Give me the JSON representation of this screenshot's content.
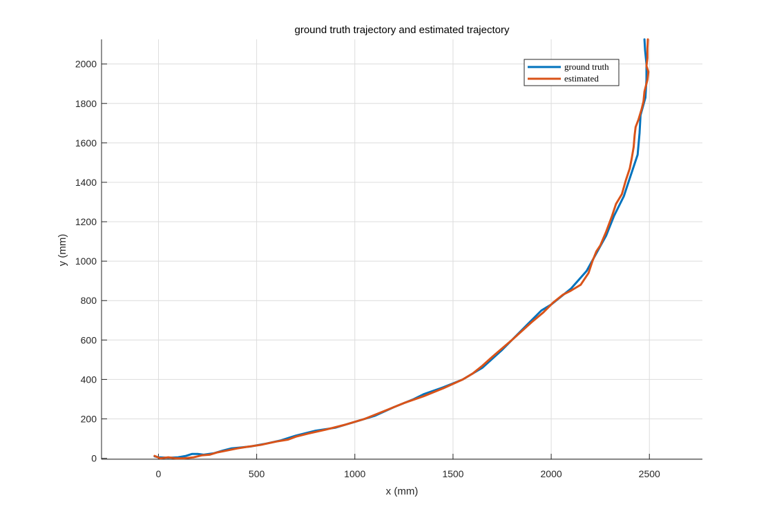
{
  "chart_data": {
    "type": "line",
    "title": "ground truth trajectory and estimated trajectory",
    "xlabel": "x (mm)",
    "ylabel": "y (mm)",
    "xlim": [
      -290,
      2770
    ],
    "ylim": [
      -5,
      2125
    ],
    "xticks": [
      0,
      500,
      1000,
      1500,
      2000,
      2500
    ],
    "yticks": [
      0,
      200,
      400,
      600,
      800,
      1000,
      1200,
      1400,
      1600,
      1800,
      2000
    ],
    "grid": true,
    "legend_position": "top-right",
    "series": [
      {
        "name": "ground truth",
        "color": "#0072BD",
        "points": [
          [
            -20,
            10
          ],
          [
            0,
            5
          ],
          [
            50,
            3
          ],
          [
            100,
            5
          ],
          [
            140,
            12
          ],
          [
            170,
            22
          ],
          [
            200,
            22
          ],
          [
            230,
            18
          ],
          [
            280,
            25
          ],
          [
            330,
            40
          ],
          [
            370,
            50
          ],
          [
            420,
            55
          ],
          [
            470,
            60
          ],
          [
            550,
            75
          ],
          [
            620,
            90
          ],
          [
            700,
            115
          ],
          [
            800,
            140
          ],
          [
            900,
            155
          ],
          [
            1000,
            185
          ],
          [
            1100,
            215
          ],
          [
            1200,
            260
          ],
          [
            1300,
            300
          ],
          [
            1350,
            325
          ],
          [
            1450,
            360
          ],
          [
            1500,
            380
          ],
          [
            1550,
            400
          ],
          [
            1650,
            460
          ],
          [
            1750,
            550
          ],
          [
            1850,
            650
          ],
          [
            1950,
            750
          ],
          [
            2000,
            780
          ],
          [
            2100,
            860
          ],
          [
            2180,
            950
          ],
          [
            2230,
            1040
          ],
          [
            2280,
            1130
          ],
          [
            2320,
            1230
          ],
          [
            2370,
            1330
          ],
          [
            2400,
            1420
          ],
          [
            2440,
            1540
          ],
          [
            2450,
            1650
          ],
          [
            2455,
            1740
          ],
          [
            2480,
            1830
          ],
          [
            2485,
            1920
          ],
          [
            2485,
            2000
          ],
          [
            2478,
            2070
          ],
          [
            2475,
            2125
          ]
        ]
      },
      {
        "name": "estimated",
        "color": "#D95319",
        "points": [
          [
            -20,
            12
          ],
          [
            10,
            0
          ],
          [
            50,
            5
          ],
          [
            90,
            0
          ],
          [
            130,
            0
          ],
          [
            180,
            5
          ],
          [
            220,
            15
          ],
          [
            260,
            18
          ],
          [
            300,
            30
          ],
          [
            350,
            40
          ],
          [
            400,
            50
          ],
          [
            450,
            58
          ],
          [
            520,
            68
          ],
          [
            600,
            85
          ],
          [
            660,
            95
          ],
          [
            700,
            110
          ],
          [
            760,
            125
          ],
          [
            850,
            145
          ],
          [
            950,
            170
          ],
          [
            1050,
            200
          ],
          [
            1150,
            240
          ],
          [
            1250,
            280
          ],
          [
            1350,
            315
          ],
          [
            1450,
            355
          ],
          [
            1550,
            400
          ],
          [
            1600,
            430
          ],
          [
            1650,
            470
          ],
          [
            1700,
            515
          ],
          [
            1800,
            600
          ],
          [
            1900,
            690
          ],
          [
            1960,
            740
          ],
          [
            2010,
            790
          ],
          [
            2060,
            830
          ],
          [
            2100,
            850
          ],
          [
            2150,
            880
          ],
          [
            2190,
            940
          ],
          [
            2210,
            1000
          ],
          [
            2230,
            1050
          ],
          [
            2250,
            1080
          ],
          [
            2280,
            1150
          ],
          [
            2310,
            1230
          ],
          [
            2330,
            1290
          ],
          [
            2360,
            1340
          ],
          [
            2380,
            1410
          ],
          [
            2400,
            1470
          ],
          [
            2410,
            1520
          ],
          [
            2420,
            1580
          ],
          [
            2425,
            1640
          ],
          [
            2430,
            1680
          ],
          [
            2445,
            1720
          ],
          [
            2460,
            1770
          ],
          [
            2470,
            1810
          ],
          [
            2475,
            1860
          ],
          [
            2490,
            1920
          ],
          [
            2495,
            1960
          ],
          [
            2485,
            1990
          ],
          [
            2490,
            2030
          ],
          [
            2490,
            2080
          ],
          [
            2492,
            2125
          ]
        ]
      }
    ]
  }
}
